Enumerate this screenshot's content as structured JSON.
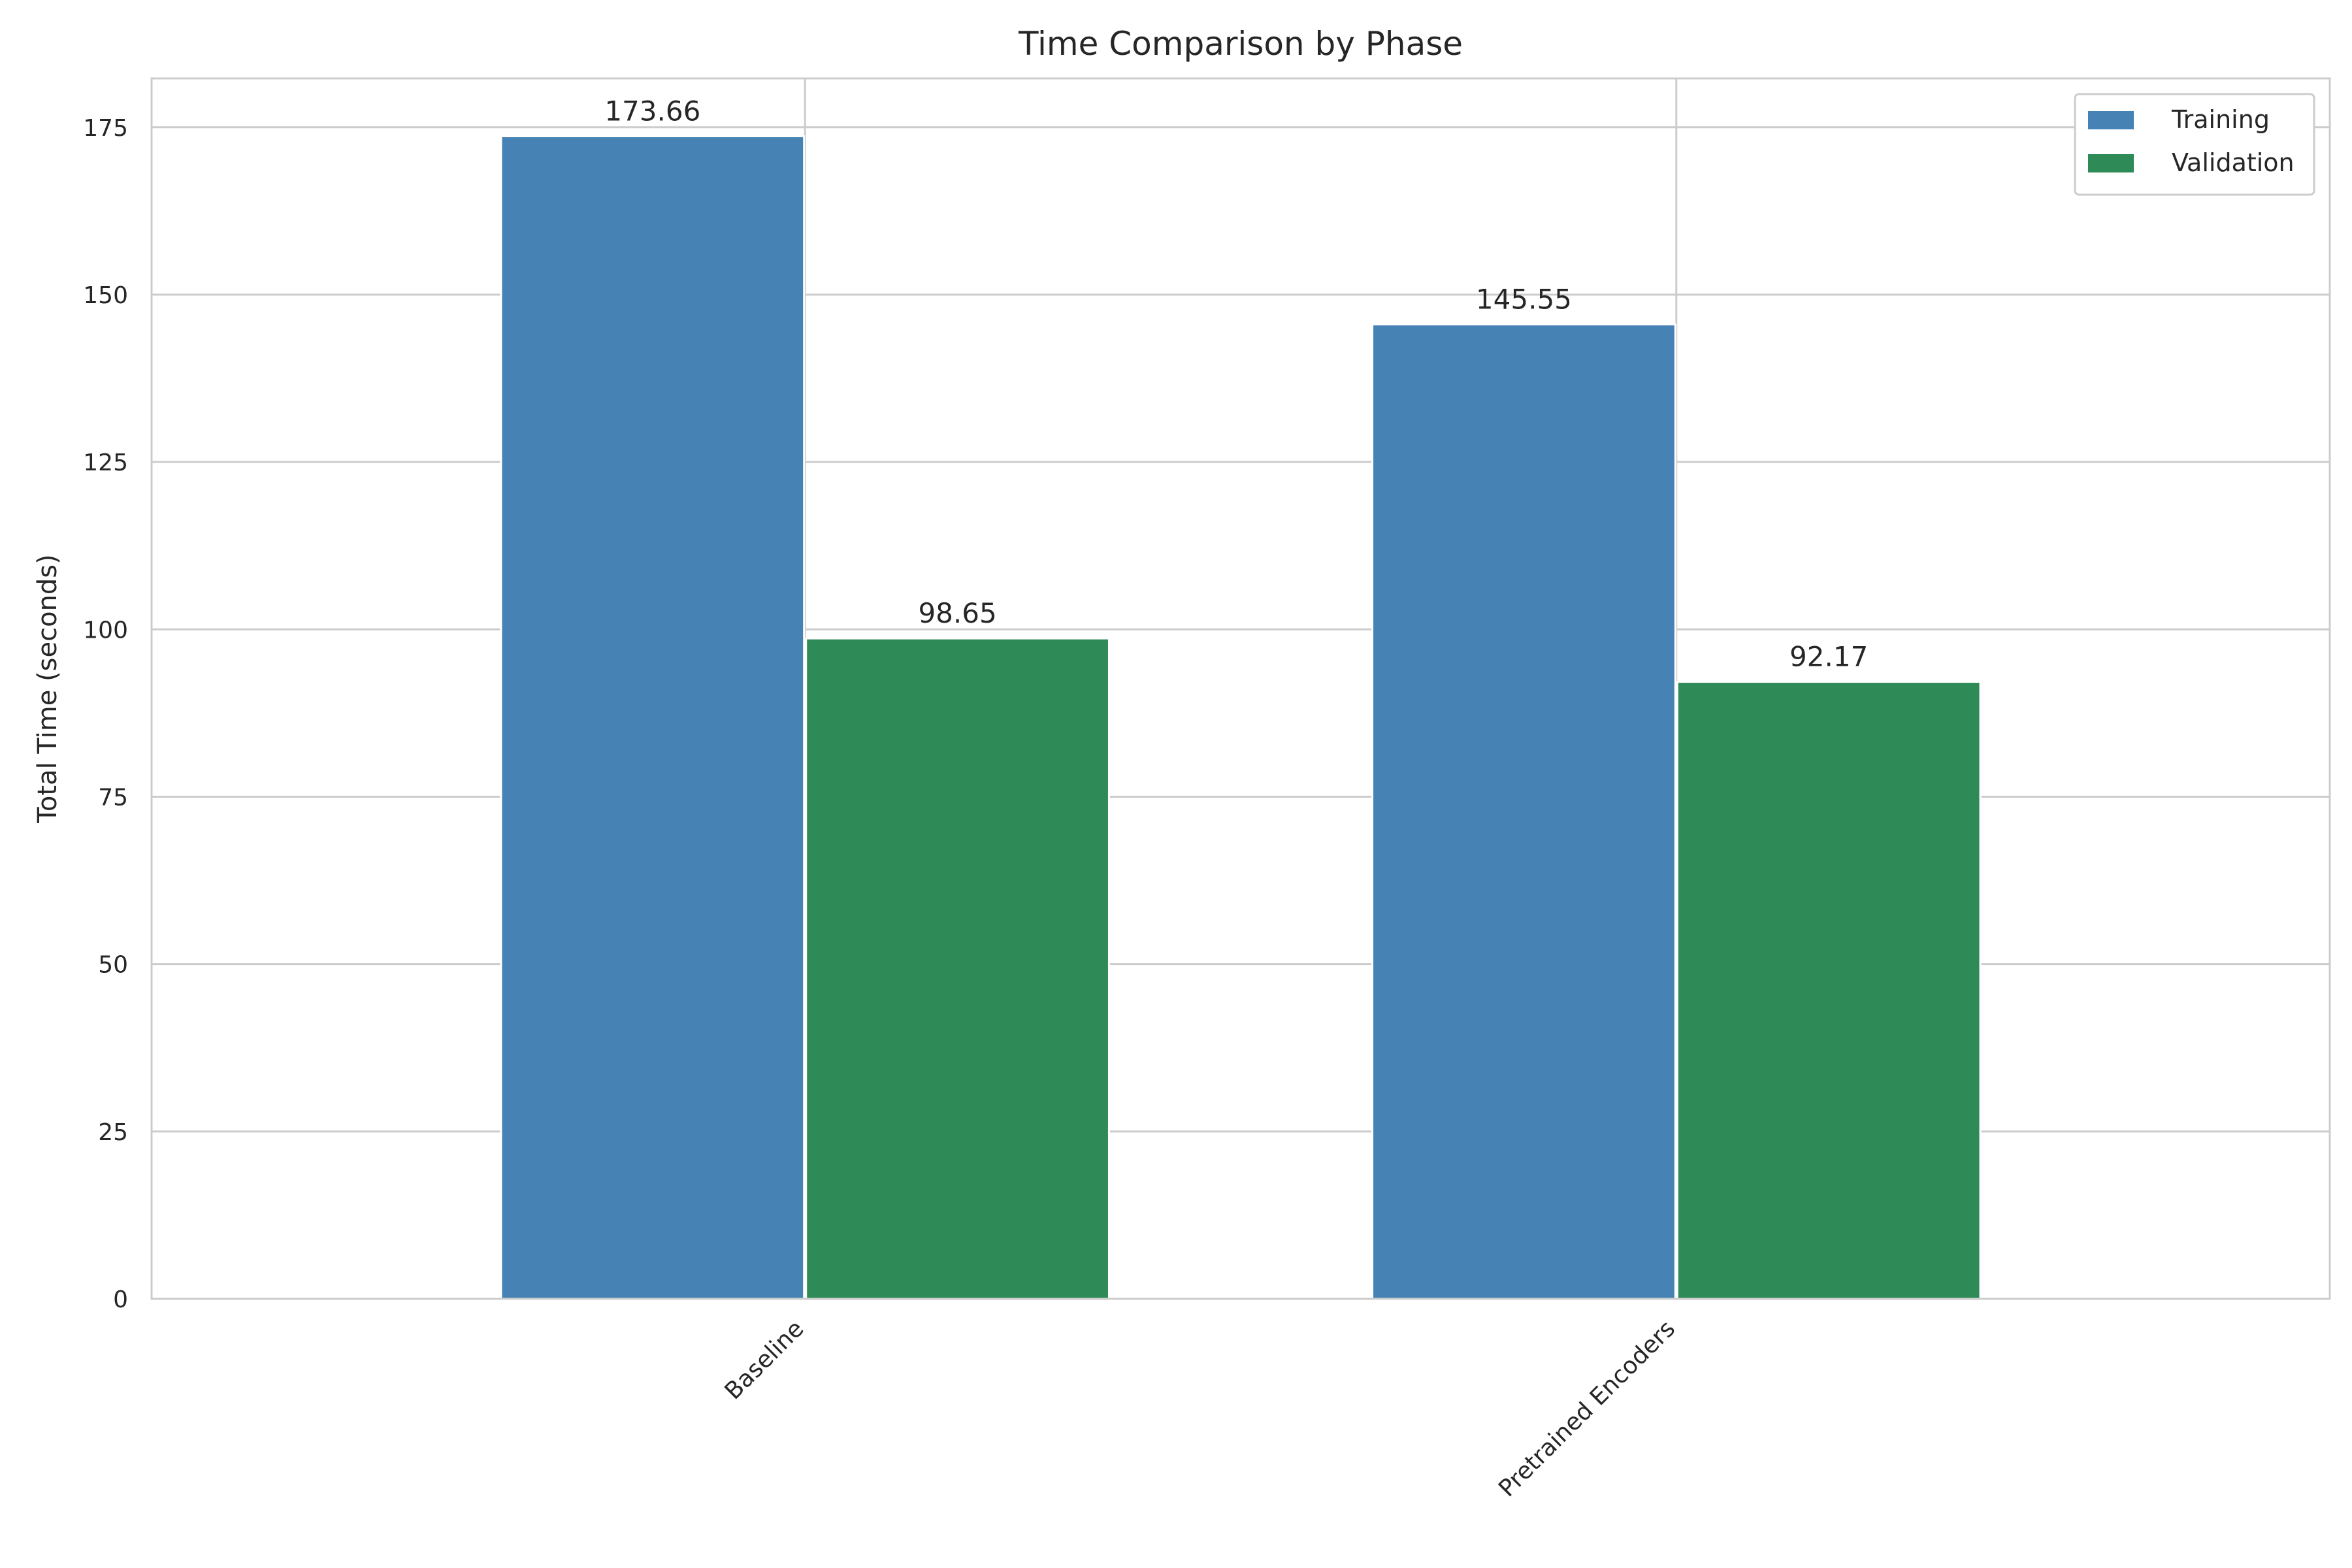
{
  "chart_data": {
    "type": "bar",
    "title": "Time Comparison by Phase",
    "xlabel": "",
    "ylabel": "Total Time (seconds)",
    "categories": [
      "Baseline",
      "Pretrained Encoders"
    ],
    "series": [
      {
        "name": "Training",
        "values": [
          173.66,
          145.55
        ],
        "color": "#4682b4"
      },
      {
        "name": "Validation",
        "values": [
          98.65,
          92.17
        ],
        "color": "#2e8b57"
      }
    ],
    "value_labels": [
      [
        "173.66",
        "145.55"
      ],
      [
        "98.65",
        "92.17"
      ]
    ],
    "ylim": [
      0,
      182.3
    ],
    "yticks": [
      0,
      25,
      50,
      75,
      100,
      125,
      150,
      175
    ],
    "grid": true,
    "legend_position": "top-right",
    "colors": {
      "axes": "#cccccc",
      "grid": "#cccccc",
      "text": "#262626"
    }
  }
}
